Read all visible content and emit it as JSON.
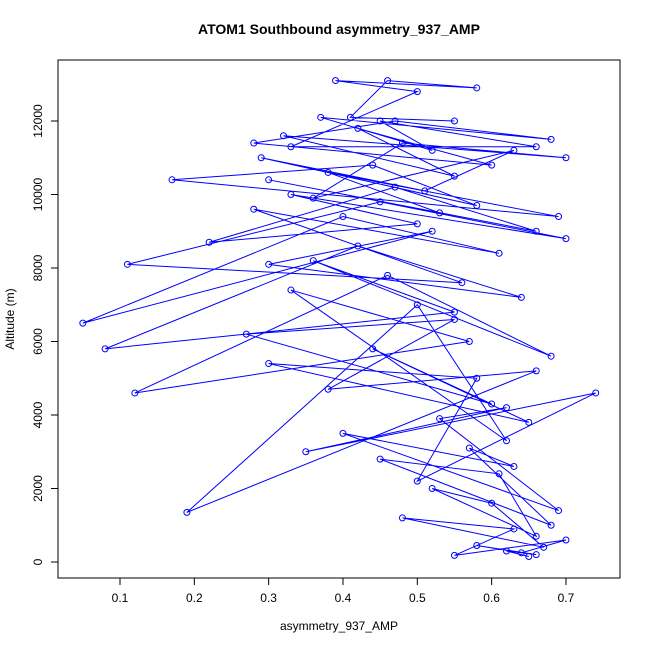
{
  "chart_data": {
    "type": "line",
    "markers": "open-circle",
    "color": "#0000ff",
    "title": "ATOM1 Southbound asymmetry_937_AMP",
    "x_label": "asymmetry_937_AMP",
    "y_label": "Altitude (m)",
    "x": [
      0.65,
      0.62,
      0.66,
      0.58,
      0.64,
      0.7,
      0.55,
      0.63,
      0.48,
      0.67,
      0.6,
      0.52,
      0.66,
      0.61,
      0.45,
      0.68,
      0.57,
      0.63,
      0.4,
      0.69,
      0.53,
      0.62,
      0.35,
      0.74,
      0.5,
      0.58,
      0.3,
      0.65,
      0.44,
      0.6,
      0.27,
      0.55,
      0.38,
      0.66,
      0.19,
      0.5,
      0.62,
      0.33,
      0.57,
      0.12,
      0.46,
      0.68,
      0.36,
      0.55,
      0.08,
      0.42,
      0.64,
      0.3,
      0.52,
      0.05,
      0.4,
      0.61,
      0.28,
      0.56,
      0.11,
      0.45,
      0.7,
      0.33,
      0.5,
      0.22,
      0.47,
      0.66,
      0.3,
      0.53,
      0.38,
      0.69,
      0.17,
      0.44,
      0.58,
      0.29,
      0.51,
      0.63,
      0.36,
      0.48,
      0.7,
      0.32,
      0.55,
      0.42,
      0.6,
      0.28,
      0.47,
      0.68,
      0.37,
      0.52,
      0.45,
      0.66,
      0.33,
      0.5,
      0.39,
      0.58,
      0.46,
      0.41,
      0.55
    ],
    "values": [
      150,
      300,
      200,
      450,
      250,
      600,
      180,
      900,
      1200,
      400,
      1600,
      2000,
      700,
      2400,
      2800,
      1000,
      3100,
      2600,
      3500,
      1400,
      3900,
      4200,
      3000,
      4600,
      2200,
      5000,
      5400,
      3800,
      5800,
      4300,
      6200,
      6600,
      4700,
      5200,
      1350,
      7000,
      3300,
      7400,
      6000,
      4600,
      7800,
      5600,
      8200,
      6800,
      5800,
      8600,
      7200,
      8100,
      9000,
      6500,
      9400,
      8400,
      9600,
      7600,
      8100,
      9800,
      8800,
      10000,
      9200,
      8700,
      10200,
      9000,
      10400,
      9500,
      10600,
      9400,
      10400,
      10800,
      9700,
      11000,
      10100,
      11200,
      9900,
      11400,
      11000,
      11600,
      10500,
      11800,
      10800,
      11400,
      12000,
      11500,
      12100,
      11200,
      12000,
      11300,
      11300,
      12800,
      13100,
      12900,
      13100,
      12100,
      12000
    ],
    "xlim": [
      0.0166,
      0.7727
    ],
    "ylim": [
      -435,
      13660
    ],
    "xticks": [
      0.1,
      0.2,
      0.3,
      0.4,
      0.5,
      0.6,
      0.7
    ],
    "yticks": [
      0,
      2000,
      4000,
      6000,
      8000,
      10000,
      12000
    ]
  }
}
